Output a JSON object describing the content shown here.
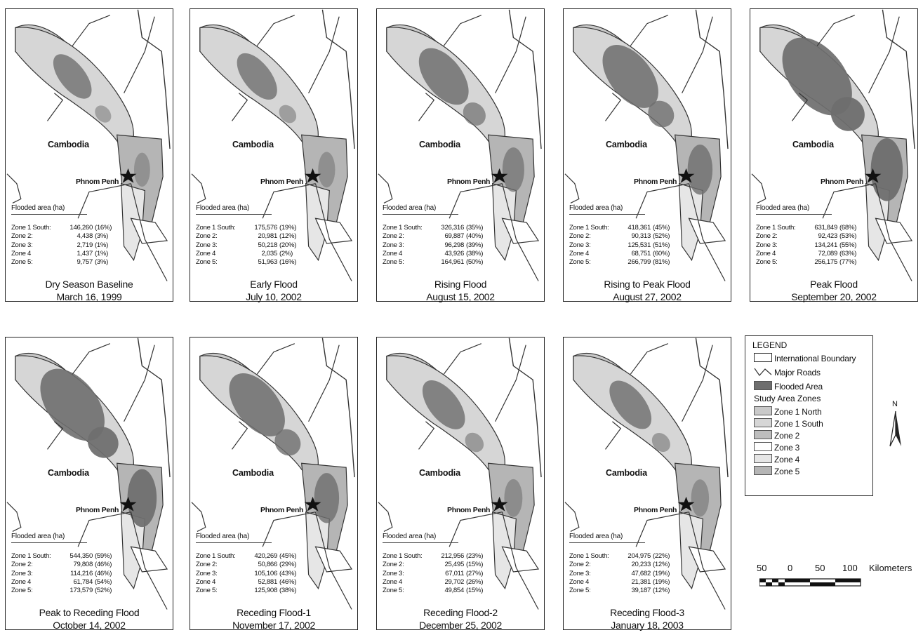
{
  "maps": [
    {
      "country": "Cambodia",
      "city": "Phnom Penh",
      "flooded_title": "Flooded area (ha)",
      "stats": [
        {
          "zone": "Zone 1 South:",
          "area": "146,260",
          "pct": "(16%)"
        },
        {
          "zone": "Zone 2:",
          "area": "4,438",
          "pct": "(3%)"
        },
        {
          "zone": "Zone 3:",
          "area": "2,719",
          "pct": "(1%)"
        },
        {
          "zone": "Zone 4",
          "area": "1,437",
          "pct": "(1%)"
        },
        {
          "zone": "Zone 5:",
          "area": "9,757",
          "pct": "(3%)"
        }
      ],
      "caption_1": "Dry Season Baseline",
      "caption_2": "March 16, 1999",
      "flood_level": 0.16
    },
    {
      "country": "Cambodia",
      "city": "Phnom Penh",
      "flooded_title": "Flooded area (ha)",
      "stats": [
        {
          "zone": "Zone 1 South:",
          "area": "175,576",
          "pct": "(19%)"
        },
        {
          "zone": "Zone 2:",
          "area": "20,981",
          "pct": "(12%)"
        },
        {
          "zone": "Zone 3:",
          "area": "50,218",
          "pct": "(20%)"
        },
        {
          "zone": "Zone 4",
          "area": "2,035",
          "pct": "(2%)"
        },
        {
          "zone": "Zone 5:",
          "area": "51,963",
          "pct": "(16%)"
        }
      ],
      "caption_1": "Early Flood",
      "caption_2": "July 10, 2002",
      "flood_level": 0.19
    },
    {
      "country": "Cambodia",
      "city": "Phnom Penh",
      "flooded_title": "Flooded area (ha)",
      "stats": [
        {
          "zone": "Zone 1 South:",
          "area": "326,316",
          "pct": "(35%)"
        },
        {
          "zone": "Zone 2:",
          "area": "69,887",
          "pct": "(40%)"
        },
        {
          "zone": "Zone 3:",
          "area": "96,298",
          "pct": "(39%)"
        },
        {
          "zone": "Zone 4",
          "area": "43,926",
          "pct": "(38%)"
        },
        {
          "zone": "Zone 5:",
          "area": "164,961",
          "pct": "(50%)"
        }
      ],
      "caption_1": "Rising Flood",
      "caption_2": "August 15, 2002",
      "flood_level": 0.35
    },
    {
      "country": "Cambodia",
      "city": "Phnom Penh",
      "flooded_title": "Flooded area (ha)",
      "stats": [
        {
          "zone": "Zone 1 South:",
          "area": "418,361",
          "pct": "(45%)"
        },
        {
          "zone": "Zone 2:",
          "area": "90,313",
          "pct": "(52%)"
        },
        {
          "zone": "Zone 3:",
          "area": "125,531",
          "pct": "(51%)"
        },
        {
          "zone": "Zone 4",
          "area": "68,751",
          "pct": "(60%)"
        },
        {
          "zone": "Zone 5:",
          "area": "266,799",
          "pct": "(81%)"
        }
      ],
      "caption_1": "Rising to Peak Flood",
      "caption_2": "August 27, 2002",
      "flood_level": 0.45
    },
    {
      "country": "Cambodia",
      "city": "Phnom Penh",
      "flooded_title": "Flooded area (ha)",
      "stats": [
        {
          "zone": "Zone 1 South:",
          "area": "631,849",
          "pct": "(68%)"
        },
        {
          "zone": "Zone 2:",
          "area": "92,423",
          "pct": "(53%)"
        },
        {
          "zone": "Zone 3:",
          "area": "134,241",
          "pct": "(55%)"
        },
        {
          "zone": "Zone 4",
          "area": "72,089",
          "pct": "(63%)"
        },
        {
          "zone": "Zone 5:",
          "area": "256,175",
          "pct": "(77%)"
        }
      ],
      "caption_1": "Peak Flood",
      "caption_2": "September 20, 2002",
      "flood_level": 0.68
    },
    {
      "country": "Cambodia",
      "city": "Phnom Penh",
      "flooded_title": "Flooded area (ha)",
      "stats": [
        {
          "zone": "Zone 1 South:",
          "area": "544,350",
          "pct": "(59%)"
        },
        {
          "zone": "Zone 2:",
          "area": "79,808",
          "pct": "(46%)"
        },
        {
          "zone": "Zone 3:",
          "area": "114,216",
          "pct": "(46%)"
        },
        {
          "zone": "Zone 4",
          "area": "61,784",
          "pct": "(54%)"
        },
        {
          "zone": "Zone 5:",
          "area": "173,579",
          "pct": "(52%)"
        }
      ],
      "caption_1": "Peak to Receding Flood",
      "caption_2": "October 14, 2002",
      "flood_level": 0.59
    },
    {
      "country": "Cambodia",
      "city": "Phnom Penh",
      "flooded_title": "Flooded area (ha)",
      "stats": [
        {
          "zone": "Zone 1 South:",
          "area": "420,269",
          "pct": "(45%)"
        },
        {
          "zone": "Zone 2:",
          "area": "50,866",
          "pct": "(29%)"
        },
        {
          "zone": "Zone 3:",
          "area": "105,106",
          "pct": "(43%)"
        },
        {
          "zone": "Zone 4",
          "area": "52,881",
          "pct": "(46%)"
        },
        {
          "zone": "Zone 5:",
          "area": "125,908",
          "pct": "(38%)"
        }
      ],
      "caption_1": "Receding Flood-1",
      "caption_2": "November 17, 2002",
      "flood_level": 0.45
    },
    {
      "country": "Cambodia",
      "city": "Phnom Penh",
      "flooded_title": "Flooded area (ha)",
      "stats": [
        {
          "zone": "Zone 1 South:",
          "area": "212,956",
          "pct": "(23%)"
        },
        {
          "zone": "Zone 2:",
          "area": "25,495",
          "pct": "(15%)"
        },
        {
          "zone": "Zone 3:",
          "area": "67,011",
          "pct": "(27%)"
        },
        {
          "zone": "Zone 4",
          "area": "29,702",
          "pct": "(26%)"
        },
        {
          "zone": "Zone 5:",
          "area": "49,854",
          "pct": "(15%)"
        }
      ],
      "caption_1": "Receding Flood-2",
      "caption_2": "December 25, 2002",
      "flood_level": 0.23
    },
    {
      "country": "Cambodia",
      "city": "Phnom Penh",
      "flooded_title": "Flooded area (ha)",
      "stats": [
        {
          "zone": "Zone 1 South:",
          "area": "204,975",
          "pct": "(22%)"
        },
        {
          "zone": "Zone 2:",
          "area": "20,233",
          "pct": "(12%)"
        },
        {
          "zone": "Zone 3:",
          "area": "47,682",
          "pct": "(19%)"
        },
        {
          "zone": "Zone 4",
          "area": "21,381",
          "pct": "(19%)"
        },
        {
          "zone": "Zone 5:",
          "area": "39,187",
          "pct": "(12%)"
        }
      ],
      "caption_1": "Receding Flood-3",
      "caption_2": "January 18, 2003",
      "flood_level": 0.22
    }
  ],
  "legend": {
    "title": "LEGEND",
    "international_boundary": "International Boundary",
    "major_roads": "Major Roads",
    "flooded_area": "Flooded Area",
    "zones_title": "Study Area Zones",
    "zones": [
      {
        "label": "Zone 1 North",
        "color": "#c9c9c9"
      },
      {
        "label": "Zone 1 South",
        "color": "#d6d6d6"
      },
      {
        "label": "Zone 2",
        "color": "#bdbdbd"
      },
      {
        "label": "Zone 3",
        "color": "#ffffff"
      },
      {
        "label": "Zone 4",
        "color": "#e6e6e6"
      },
      {
        "label": "Zone 5",
        "color": "#b5b5b5"
      }
    ],
    "flooded_color": "#6e6e6e"
  },
  "north_arrow": {
    "label": "N"
  },
  "scale": {
    "labels": [
      "50",
      "0",
      "50",
      "100"
    ],
    "unit": "Kilometers"
  }
}
